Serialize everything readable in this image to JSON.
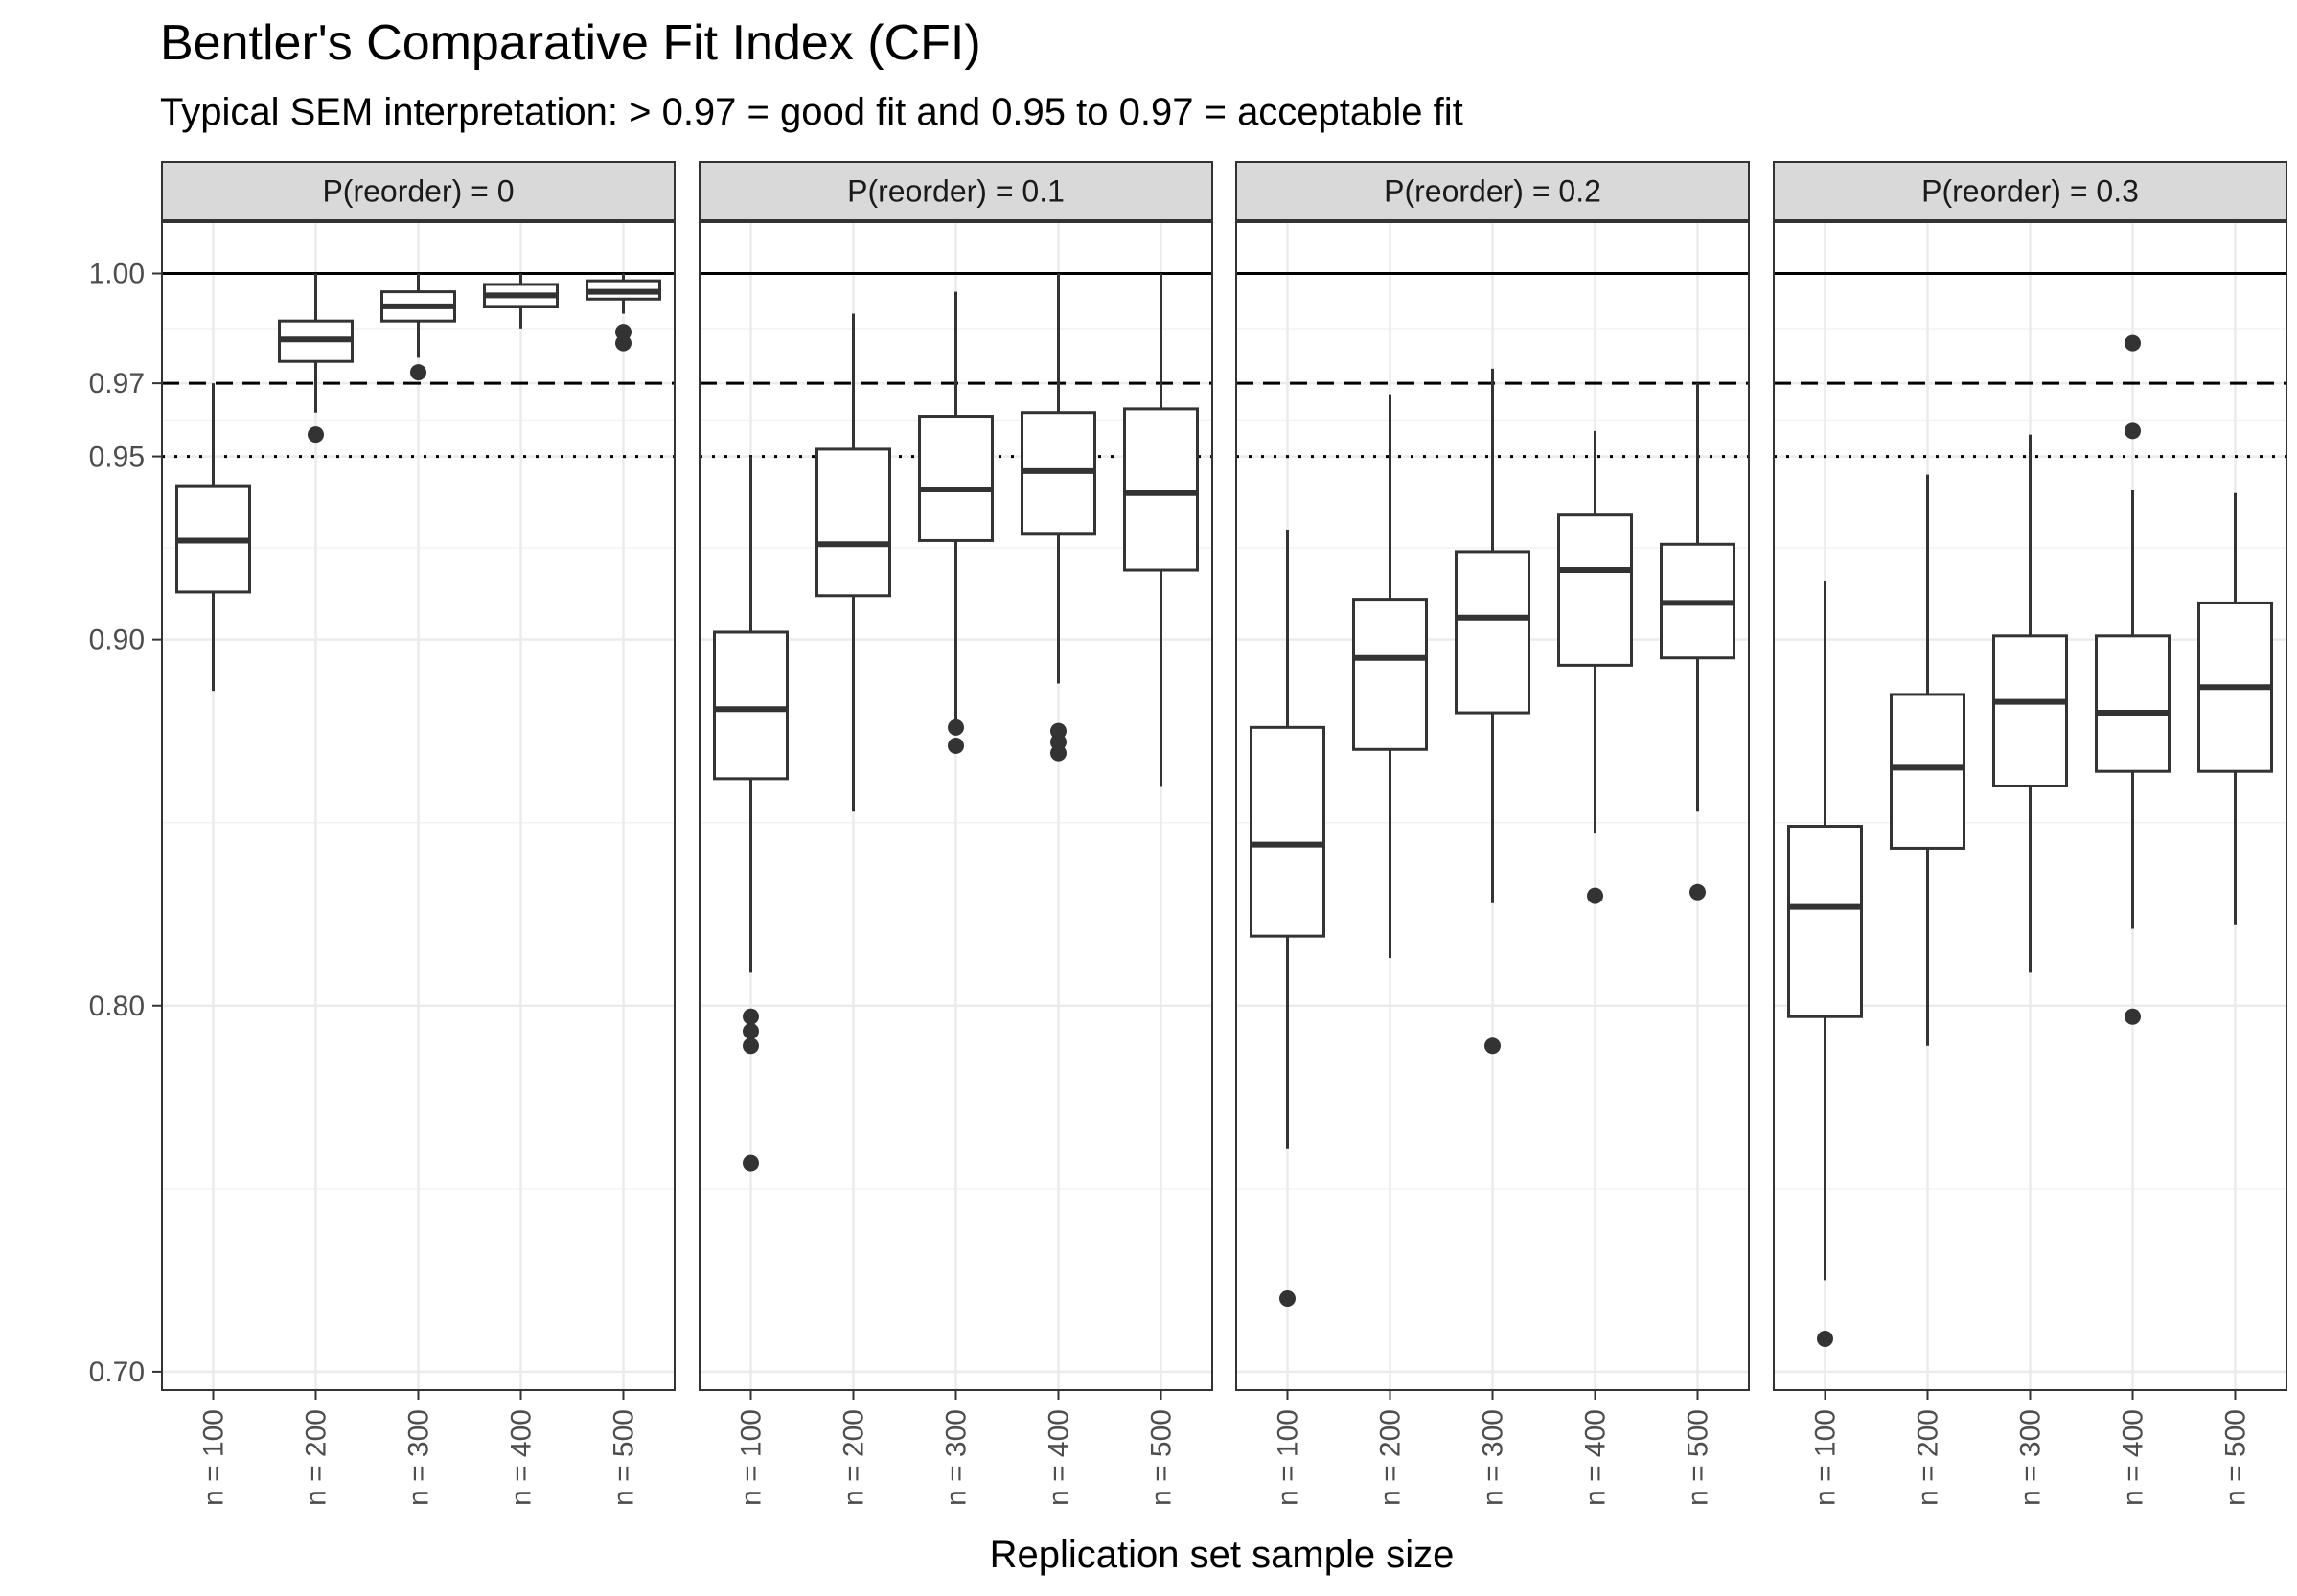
{
  "chart_data": {
    "type": "boxplot",
    "title": "Bentler's Comparative Fit Index (CFI)",
    "subtitle": "Typical SEM interpretation: > 0.97 = good fit and 0.95 to 0.97 = acceptable fit",
    "xlabel": "Replication set sample size",
    "ylabel": "",
    "ylim": [
      0.695,
      1.014
    ],
    "y_ticks": [
      0.7,
      0.8,
      0.9,
      0.95,
      0.97,
      1.0
    ],
    "y_tick_labels": [
      "0.70",
      "0.80",
      "0.90",
      "0.95",
      "0.97",
      "1.00"
    ],
    "categories": [
      "n = 100",
      "n = 200",
      "n = 300",
      "n = 400",
      "n = 500"
    ],
    "reference_lines": [
      {
        "value": 1.0,
        "style": "solid"
      },
      {
        "value": 0.97,
        "style": "dashed"
      },
      {
        "value": 0.95,
        "style": "dotted"
      }
    ],
    "grid": true,
    "facets": [
      {
        "label": "P(reorder) = 0",
        "boxes": [
          {
            "category": "n = 100",
            "lower": 0.886,
            "q1": 0.913,
            "median": 0.927,
            "q3": 0.942,
            "upper": 0.97,
            "outliers": []
          },
          {
            "category": "n = 200",
            "lower": 0.962,
            "q1": 0.976,
            "median": 0.982,
            "q3": 0.987,
            "upper": 1.0,
            "outliers": [
              0.956
            ]
          },
          {
            "category": "n = 300",
            "lower": 0.977,
            "q1": 0.987,
            "median": 0.991,
            "q3": 0.995,
            "upper": 1.0,
            "outliers": [
              0.973
            ]
          },
          {
            "category": "n = 400",
            "lower": 0.985,
            "q1": 0.991,
            "median": 0.994,
            "q3": 0.997,
            "upper": 1.0,
            "outliers": []
          },
          {
            "category": "n = 500",
            "lower": 0.989,
            "q1": 0.993,
            "median": 0.995,
            "q3": 0.998,
            "upper": 1.0,
            "outliers": [
              0.984,
              0.981
            ]
          }
        ]
      },
      {
        "label": "P(reorder) = 0.1",
        "boxes": [
          {
            "category": "n = 100",
            "lower": 0.809,
            "q1": 0.862,
            "median": 0.881,
            "q3": 0.902,
            "upper": 0.95,
            "outliers": [
              0.797,
              0.793,
              0.789,
              0.757
            ]
          },
          {
            "category": "n = 200",
            "lower": 0.853,
            "q1": 0.912,
            "median": 0.926,
            "q3": 0.952,
            "upper": 0.989,
            "outliers": []
          },
          {
            "category": "n = 300",
            "lower": 0.874,
            "q1": 0.927,
            "median": 0.941,
            "q3": 0.961,
            "upper": 0.995,
            "outliers": [
              0.876,
              0.871
            ]
          },
          {
            "category": "n = 400",
            "lower": 0.888,
            "q1": 0.929,
            "median": 0.946,
            "q3": 0.962,
            "upper": 1.0,
            "outliers": [
              0.875,
              0.872,
              0.869
            ]
          },
          {
            "category": "n = 500",
            "lower": 0.86,
            "q1": 0.919,
            "median": 0.94,
            "q3": 0.963,
            "upper": 1.0,
            "outliers": []
          }
        ]
      },
      {
        "label": "P(reorder) = 0.2",
        "boxes": [
          {
            "category": "n = 100",
            "lower": 0.761,
            "q1": 0.819,
            "median": 0.844,
            "q3": 0.876,
            "upper": 0.93,
            "outliers": [
              0.72
            ]
          },
          {
            "category": "n = 200",
            "lower": 0.813,
            "q1": 0.87,
            "median": 0.895,
            "q3": 0.911,
            "upper": 0.967,
            "outliers": []
          },
          {
            "category": "n = 300",
            "lower": 0.828,
            "q1": 0.88,
            "median": 0.906,
            "q3": 0.924,
            "upper": 0.974,
            "outliers": [
              0.789
            ]
          },
          {
            "category": "n = 400",
            "lower": 0.847,
            "q1": 0.893,
            "median": 0.919,
            "q3": 0.934,
            "upper": 0.957,
            "outliers": [
              0.83
            ]
          },
          {
            "category": "n = 500",
            "lower": 0.853,
            "q1": 0.895,
            "median": 0.91,
            "q3": 0.926,
            "upper": 0.97,
            "outliers": [
              0.831
            ]
          }
        ]
      },
      {
        "label": "P(reorder) = 0.3",
        "boxes": [
          {
            "category": "n = 100",
            "lower": 0.725,
            "q1": 0.797,
            "median": 0.827,
            "q3": 0.849,
            "upper": 0.916,
            "outliers": [
              0.709
            ]
          },
          {
            "category": "n = 200",
            "lower": 0.789,
            "q1": 0.843,
            "median": 0.865,
            "q3": 0.885,
            "upper": 0.945,
            "outliers": []
          },
          {
            "category": "n = 300",
            "lower": 0.809,
            "q1": 0.86,
            "median": 0.883,
            "q3": 0.901,
            "upper": 0.956,
            "outliers": []
          },
          {
            "category": "n = 400",
            "lower": 0.821,
            "q1": 0.864,
            "median": 0.88,
            "q3": 0.901,
            "upper": 0.941,
            "outliers": [
              0.981,
              0.957,
              0.797
            ]
          },
          {
            "category": "n = 500",
            "lower": 0.822,
            "q1": 0.864,
            "median": 0.887,
            "q3": 0.91,
            "upper": 0.94,
            "outliers": []
          }
        ]
      }
    ]
  }
}
